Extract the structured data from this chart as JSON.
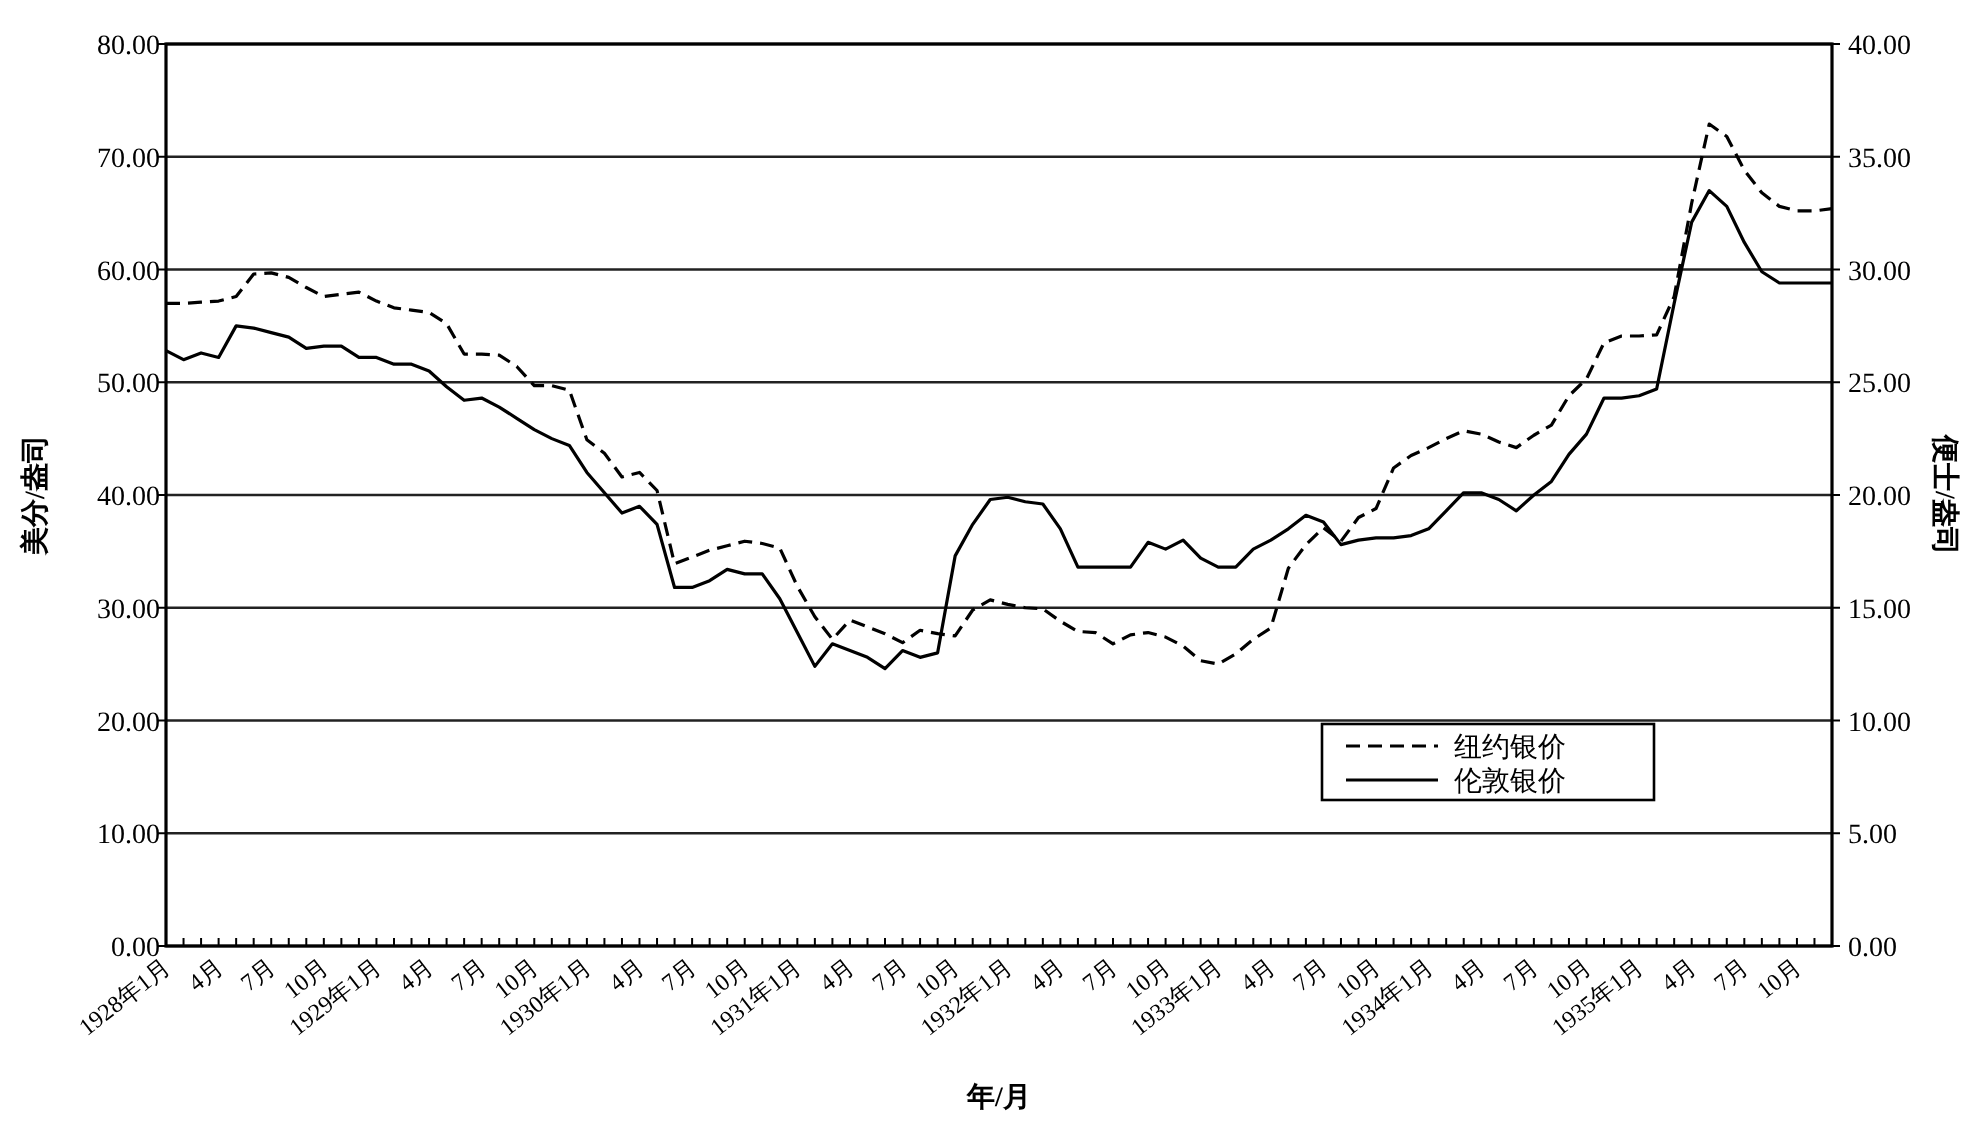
{
  "chart_data": {
    "type": "line",
    "xlabel": "年/月",
    "ylabel": "美分/盎司",
    "y2label": "便士/盎司",
    "categories": [
      "1928年1月",
      null,
      null,
      "4月",
      null,
      null,
      "7月",
      null,
      null,
      "10月",
      null,
      null,
      "1929年1月",
      null,
      null,
      "4月",
      null,
      null,
      "7月",
      null,
      null,
      "10月",
      null,
      null,
      "1930年1月",
      null,
      null,
      "4月",
      null,
      null,
      "7月",
      null,
      null,
      "10月",
      null,
      null,
      "1931年1月",
      null,
      null,
      "4月",
      null,
      null,
      "7月",
      null,
      null,
      "10月",
      null,
      null,
      "1932年1月",
      null,
      null,
      "4月",
      null,
      null,
      "7月",
      null,
      null,
      "10月",
      null,
      null,
      "1933年1月",
      null,
      null,
      "4月",
      null,
      null,
      "7月",
      null,
      null,
      "10月",
      null,
      null,
      "1934年1月",
      null,
      null,
      "4月",
      null,
      null,
      "7月",
      null,
      null,
      "10月",
      null,
      null,
      "1935年1月",
      null,
      null,
      "4月",
      null,
      null,
      "7月",
      null,
      null,
      "10月",
      null,
      null
    ],
    "series": [
      {
        "name": "纽约银价",
        "color": "#000000",
        "line_style": "dashed",
        "values": [
          57.0,
          57.0,
          57.1,
          57.2,
          57.6,
          59.6,
          59.7,
          59.3,
          58.4,
          57.6,
          57.8,
          58.0,
          57.2,
          56.6,
          56.4,
          56.2,
          55.2,
          52.5,
          52.5,
          52.4,
          51.4,
          49.7,
          49.7,
          49.3,
          44.9,
          43.7,
          41.6,
          42.0,
          40.4,
          33.9,
          34.5,
          35.1,
          35.5,
          35.9,
          35.7,
          35.3,
          31.9,
          29.2,
          27.2,
          28.9,
          28.3,
          27.7,
          26.9,
          28.0,
          27.7,
          27.5,
          29.8,
          30.7,
          30.3,
          30.0,
          29.9,
          28.8,
          27.9,
          27.8,
          26.8,
          27.6,
          27.8,
          27.4,
          26.6,
          25.3,
          25.0,
          25.9,
          27.2,
          28.2,
          33.5,
          35.6,
          37.1,
          35.9,
          38.0,
          38.8,
          42.4,
          43.5,
          44.2,
          45.0,
          45.7,
          45.4,
          44.7,
          44.2,
          45.3,
          46.2,
          48.8,
          50.3,
          53.5,
          54.1,
          54.1,
          54.2,
          57.6,
          65.9,
          72.9,
          71.8,
          68.8,
          66.8,
          65.6,
          65.2,
          65.2,
          65.4
        ]
      },
      {
        "name": "伦敦银价",
        "color": "#000000",
        "line_style": "solid",
        "axis": "y2",
        "values": [
          26.4,
          26.0,
          26.3,
          26.1,
          27.5,
          27.4,
          27.2,
          27.0,
          26.5,
          26.6,
          26.6,
          26.1,
          26.1,
          25.8,
          25.8,
          25.5,
          24.8,
          24.2,
          24.3,
          23.9,
          23.4,
          22.9,
          22.5,
          22.2,
          21.0,
          20.1,
          19.2,
          19.5,
          18.7,
          15.9,
          15.9,
          16.2,
          16.7,
          16.5,
          16.5,
          15.4,
          13.9,
          12.4,
          13.4,
          13.1,
          12.8,
          12.3,
          13.1,
          12.8,
          13.0,
          17.3,
          18.7,
          19.8,
          19.9,
          19.7,
          19.6,
          18.5,
          16.8,
          16.8,
          16.8,
          16.8,
          17.9,
          17.6,
          18.0,
          17.2,
          16.8,
          16.8,
          17.6,
          18.0,
          18.5,
          19.1,
          18.8,
          17.8,
          18.0,
          18.1,
          18.1,
          18.2,
          18.5,
          19.3,
          20.1,
          20.1,
          19.8,
          19.3,
          20.0,
          20.6,
          21.8,
          22.7,
          24.3,
          24.3,
          24.4,
          24.7,
          28.5,
          32.1,
          33.5,
          32.8,
          31.2,
          29.9,
          29.4,
          29.4,
          29.4,
          29.4
        ]
      }
    ],
    "ylim": [
      0,
      80
    ],
    "yticks": [
      {
        "value": 0,
        "label": "0.00"
      },
      {
        "value": 10,
        "label": "10.00"
      },
      {
        "value": 20,
        "label": "20.00"
      },
      {
        "value": 30,
        "label": "30.00"
      },
      {
        "value": 40,
        "label": "40.00"
      },
      {
        "value": 50,
        "label": "50.00"
      },
      {
        "value": 60,
        "label": "60.00"
      },
      {
        "value": 70,
        "label": "70.00"
      },
      {
        "value": 80,
        "label": "80.00"
      }
    ],
    "y2lim": [
      0,
      40
    ],
    "y2ticks": [
      {
        "value": 0,
        "label": "0.00"
      },
      {
        "value": 5,
        "label": "5.00"
      },
      {
        "value": 10,
        "label": "10.00"
      },
      {
        "value": 15,
        "label": "15.00"
      },
      {
        "value": 20,
        "label": "20.00"
      },
      {
        "value": 25,
        "label": "25.00"
      },
      {
        "value": 30,
        "label": "30.00"
      },
      {
        "value": 35,
        "label": "35.00"
      },
      {
        "value": 40,
        "label": "40.00"
      }
    ],
    "grid": "y",
    "legend": "bottom right"
  }
}
